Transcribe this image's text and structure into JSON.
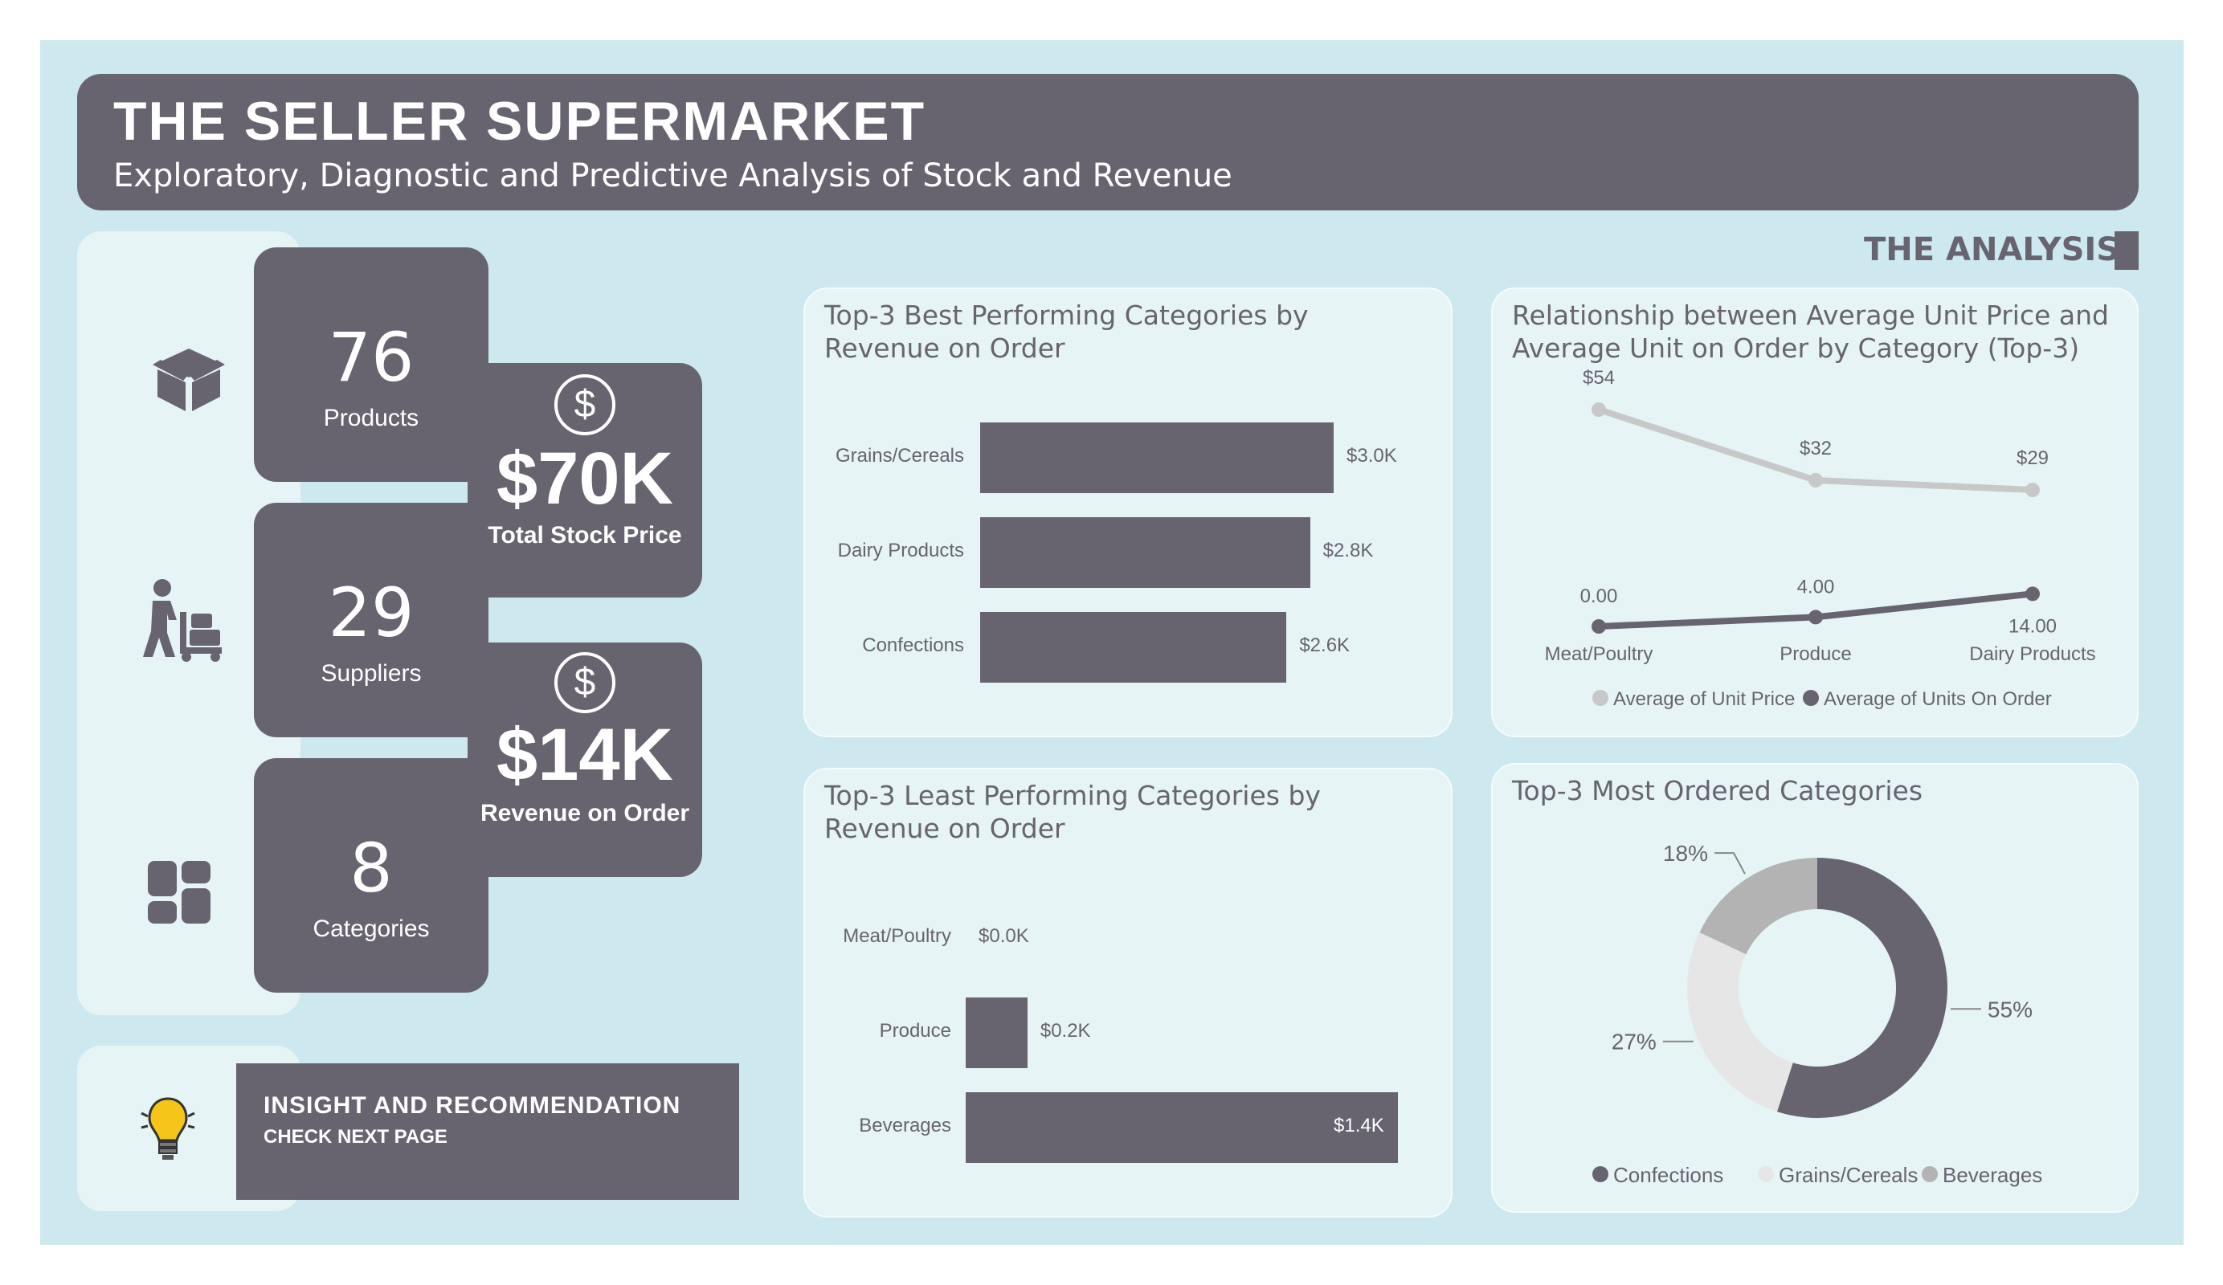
{
  "header": {
    "title": "THE SELLER SUPERMARKET",
    "subtitle": "Exploratory, Diagnostic and Predictive Analysis of Stock and Revenue"
  },
  "section_label": "THE ANALYSIS",
  "side_icons": [
    "box-icon",
    "warehouse-worker-icon",
    "categories-grid-icon"
  ],
  "kpis": {
    "products": {
      "value": "76",
      "label": "Products"
    },
    "suppliers": {
      "value": "29",
      "label": "Suppliers"
    },
    "categories": {
      "value": "8",
      "label": "Categories"
    },
    "total_stock_price": {
      "value": "$70K",
      "label": "Total Stock Price",
      "icon": "dollar-circle-icon"
    },
    "revenue_on_order": {
      "value": "$14K",
      "label": "Revenue on Order",
      "icon": "dollar-circle-icon"
    }
  },
  "insight": {
    "title": "INSIGHT AND RECOMMENDATION",
    "subtitle": "CHECK NEXT PAGE",
    "icon": "lightbulb-icon"
  },
  "colors": {
    "primary": "#676470",
    "background": "#cde9ef",
    "card": "#e6f4f6",
    "line_light": "#c8c8c8",
    "slice_light": "#e6e6e6",
    "slice_mid": "#b3b3b3",
    "bulb": "#f5c518"
  },
  "chart_data": [
    {
      "type": "bar",
      "orientation": "horizontal",
      "title": "Top-3 Best Performing Categories by Revenue on Order",
      "categories": [
        "Grains/Cereals",
        "Dairy Products",
        "Confections"
      ],
      "values": [
        3.0,
        2.8,
        2.6
      ],
      "value_labels": [
        "$3.0K",
        "$2.8K",
        "$2.6K"
      ],
      "unit": "K$",
      "xlim": [
        0,
        3.6
      ]
    },
    {
      "type": "bar",
      "orientation": "horizontal",
      "title": "Top-3 Least Performing Categories by Revenue on Order",
      "categories": [
        "Meat/Poultry",
        "Produce",
        "Beverages"
      ],
      "values": [
        0.0,
        0.2,
        1.4
      ],
      "value_labels": [
        "$0.0K",
        "$0.2K",
        "$1.4K"
      ],
      "unit": "K$",
      "xlim": [
        0,
        1.4
      ]
    },
    {
      "type": "line",
      "title": "Relationship between Average Unit Price and Average Unit on Order by Category (Top-3)",
      "categories": [
        "Meat/Poultry",
        "Produce",
        "Dairy Products"
      ],
      "series": [
        {
          "name": "Average of Unit Price",
          "values": [
            54,
            32,
            29
          ],
          "labels": [
            "$54",
            "$32",
            "$29"
          ],
          "color": "#c8c8c8"
        },
        {
          "name": "Average of Units On Order",
          "values": [
            0.0,
            4.0,
            14.0
          ],
          "labels": [
            "0.00",
            "4.00",
            "14.00"
          ],
          "color": "#676470"
        }
      ],
      "legend": "bottom"
    },
    {
      "type": "pie",
      "style": "donut",
      "title": "Top-3 Most Ordered Categories",
      "categories": [
        "Confections",
        "Grains/Cereals",
        "Beverages"
      ],
      "values": [
        55,
        27,
        18
      ],
      "value_labels": [
        "55%",
        "27%",
        "18%"
      ],
      "colors": [
        "#676470",
        "#e6e6e6",
        "#b3b3b3"
      ],
      "legend": "bottom"
    }
  ]
}
